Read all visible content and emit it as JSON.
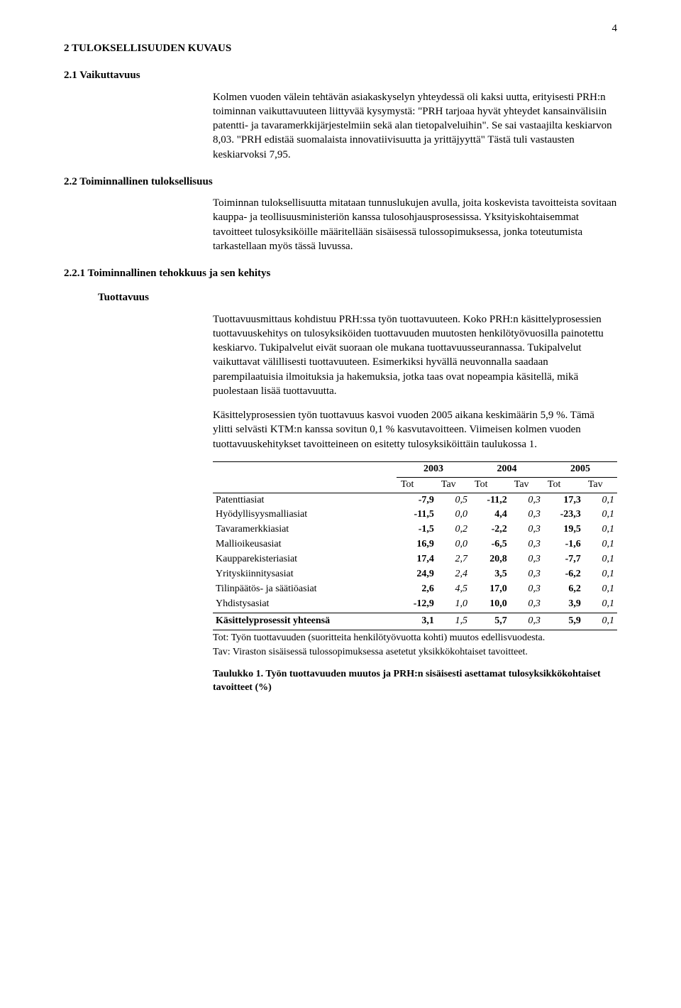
{
  "page_number": "4",
  "h2_1": "2 TULOKSELLISUUDEN KUVAUS",
  "h3_1": "2.1 Vaikuttavuus",
  "para_1": "Kolmen vuoden välein tehtävän asiakaskyselyn yhteydessä oli kaksi uutta, erityisesti PRH:n toiminnan vaikuttavuuteen liittyvää kysymystä: \"PRH tarjoaa hyvät yhteydet kansainvälisiin patentti- ja tavaramerkkijärjestelmiin sekä alan tietopalveluihin\". Se sai vastaajilta keskiarvon 8,03. \"PRH edistää suomalaista innovatiivisuutta ja yrittäjyyttä\" Tästä tuli vastausten keskiarvoksi 7,95.",
  "h3_2": "2.2 Toiminnallinen tuloksellisuus",
  "para_2": "Toiminnan tuloksellisuutta mitataan tunnuslukujen avulla, joita koskevista tavoitteista sovitaan kauppa- ja teollisuusministeriön kanssa tulosohjausprosessissa. Yksityiskohtaisemmat tavoitteet tulosyksiköille määritellään sisäisessä tulossopimuksessa, jonka toteutumista tarkastellaan myös tässä luvussa.",
  "h3_3": "2.2.1 Toiminnallinen tehokkuus ja sen kehitys",
  "h4_1": "Tuottavuus",
  "para_3": "Tuottavuusmittaus kohdistuu PRH:ssa työn tuottavuuteen. Koko PRH:n käsittelyprosessien tuottavuuskehitys on tulosyksiköiden tuottavuuden muutosten henkilötyövuosilla painotettu keskiarvo. Tukipalvelut eivät suoraan ole mukana tuottavuusseurannassa. Tukipalvelut vaikuttavat välillisesti tuottavuuteen. Esimerkiksi hyvällä neuvonnalla saadaan parempilaatuisia ilmoituksia ja hakemuksia, jotka taas ovat nopeampia käsitellä, mikä puolestaan lisää tuottavuutta.",
  "para_4": "Käsittelyprosessien työn tuottavuus kasvoi vuoden 2005 aikana keskimäärin 5,9 %. Tämä ylitti selvästi KTM:n kanssa sovitun 0,1 % kasvutavoitteen. Viimeisen kolmen vuoden tuottavuuskehitykset tavoitteineen on esitetty tulosyksiköittäin taulukossa 1.",
  "table": {
    "years": [
      "2003",
      "2004",
      "2005"
    ],
    "subheads": [
      "Tot",
      "Tav",
      "Tot",
      "Tav",
      "Tot",
      "Tav"
    ],
    "rows": [
      {
        "label": "Patenttiasiat",
        "vals": [
          "-7,9",
          "0,5",
          "-11,2",
          "0,3",
          "17,3",
          "0,1"
        ]
      },
      {
        "label": "Hyödyllisyysmalliasiat",
        "vals": [
          "-11,5",
          "0,0",
          "4,4",
          "0,3",
          "-23,3",
          "0,1"
        ]
      },
      {
        "label": "Tavaramerkkiasiat",
        "vals": [
          "-1,5",
          "0,2",
          "-2,2",
          "0,3",
          "19,5",
          "0,1"
        ]
      },
      {
        "label": "Mallioikeusasiat",
        "vals": [
          "16,9",
          "0,0",
          "-6,5",
          "0,3",
          "-1,6",
          "0,1"
        ]
      },
      {
        "label": "Kaupparekisteriasiat",
        "vals": [
          "17,4",
          "2,7",
          "20,8",
          "0,3",
          "-7,7",
          "0,1"
        ]
      },
      {
        "label": "Yrityskiinnitysasiat",
        "vals": [
          "24,9",
          "2,4",
          "3,5",
          "0,3",
          "-6,2",
          "0,1"
        ]
      },
      {
        "label": "Tilinpäätös- ja säätiöasiat",
        "vals": [
          "2,6",
          "4,5",
          "17,0",
          "0,3",
          "6,2",
          "0,1"
        ]
      },
      {
        "label": "Yhdistysasiat",
        "vals": [
          "-12,9",
          "1,0",
          "10,0",
          "0,3",
          "3,9",
          "0,1"
        ]
      }
    ],
    "total": {
      "label": "Käsittelyprosessit yhteensä",
      "vals": [
        "3,1",
        "1,5",
        "5,7",
        "0,3",
        "5,9",
        "0,1"
      ]
    }
  },
  "note_1": "Tot: Työn tuottavuuden (suoritteita henkilötyövuotta kohti) muutos edellisvuodesta.",
  "note_2": "Tav: Viraston sisäisessä tulossopimuksessa asetetut yksikkökohtaiset tavoitteet.",
  "caption": "Taulukko 1. Työn tuottavuuden muutos ja PRH:n sisäisesti asettamat tulosyksikkökohtaiset tavoitteet  (%)"
}
